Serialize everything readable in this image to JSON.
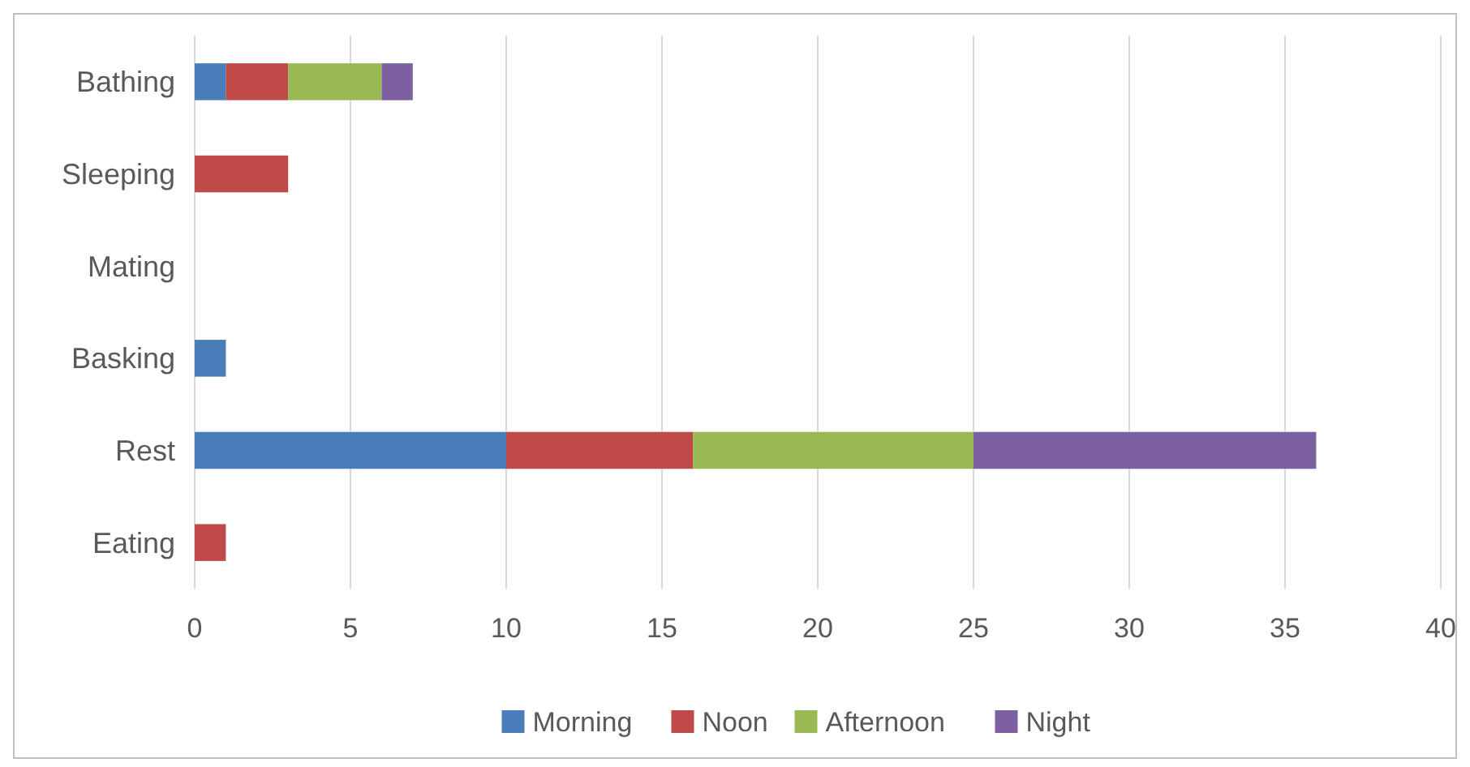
{
  "chart_data": {
    "type": "bar",
    "orientation": "horizontal",
    "stacked": true,
    "categories": [
      "Bathing",
      "Sleeping",
      "Mating",
      "Basking",
      "Rest",
      "Eating"
    ],
    "series": [
      {
        "name": "Morning",
        "color": "#4a7ebb",
        "values": [
          1,
          null,
          null,
          1,
          10,
          null
        ]
      },
      {
        "name": "Noon",
        "color": "#be4b48",
        "values": [
          2,
          3,
          null,
          null,
          6,
          1
        ]
      },
      {
        "name": "Afternoon",
        "color": "#98b954",
        "values": [
          3,
          null,
          null,
          null,
          9,
          null
        ]
      },
      {
        "name": "Night",
        "color": "#7d60a0",
        "values": [
          1,
          null,
          null,
          null,
          11,
          null
        ]
      }
    ],
    "xlim": [
      0,
      40
    ],
    "xticks": [
      0,
      5,
      10,
      15,
      20,
      25,
      30,
      35,
      40
    ],
    "grid": "x",
    "legend": "bottom"
  }
}
